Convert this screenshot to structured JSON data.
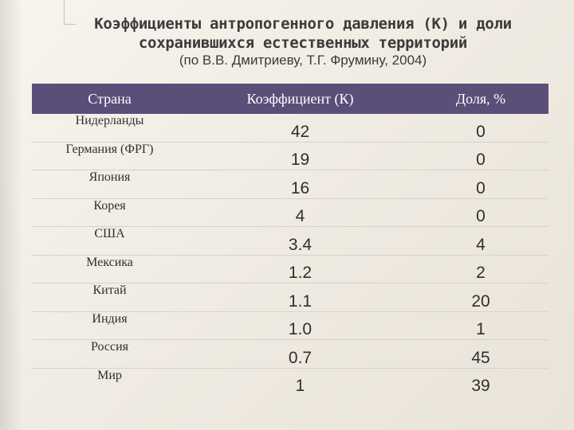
{
  "title": {
    "line1": "Коэффициенты антропогенного давления (К) и доли",
    "line2": "сохранившихся естественных территорий"
  },
  "subtitle": "(по В.В. Дмитриеву, Т.Г. Фрумину, 2004)",
  "colors": {
    "header_bg": "#5b4e79",
    "header_text": "#ffffff",
    "page_bg": "#f3efe8"
  },
  "table": {
    "headers": [
      "Страна",
      "Коэффициент (К)",
      "Доля, %"
    ],
    "rows": [
      {
        "country": "Нидерланды",
        "k": "42",
        "share": "0"
      },
      {
        "country": "Германия (ФРГ)",
        "k": "19",
        "share": "0"
      },
      {
        "country": "Япония",
        "k": "16",
        "share": "0"
      },
      {
        "country": "Корея",
        "k": "4",
        "share": "0"
      },
      {
        "country": "США",
        "k": "3.4",
        "share": "4"
      },
      {
        "country": "Мексика",
        "k": "1.2",
        "share": "2"
      },
      {
        "country": "Китай",
        "k": "1.1",
        "share": "20"
      },
      {
        "country": "Индия",
        "k": "1.0",
        "share": "1"
      },
      {
        "country": "Россия",
        "k": "0.7",
        "share": "45"
      },
      {
        "country": "Мир",
        "k": "1",
        "share": "39"
      }
    ]
  }
}
